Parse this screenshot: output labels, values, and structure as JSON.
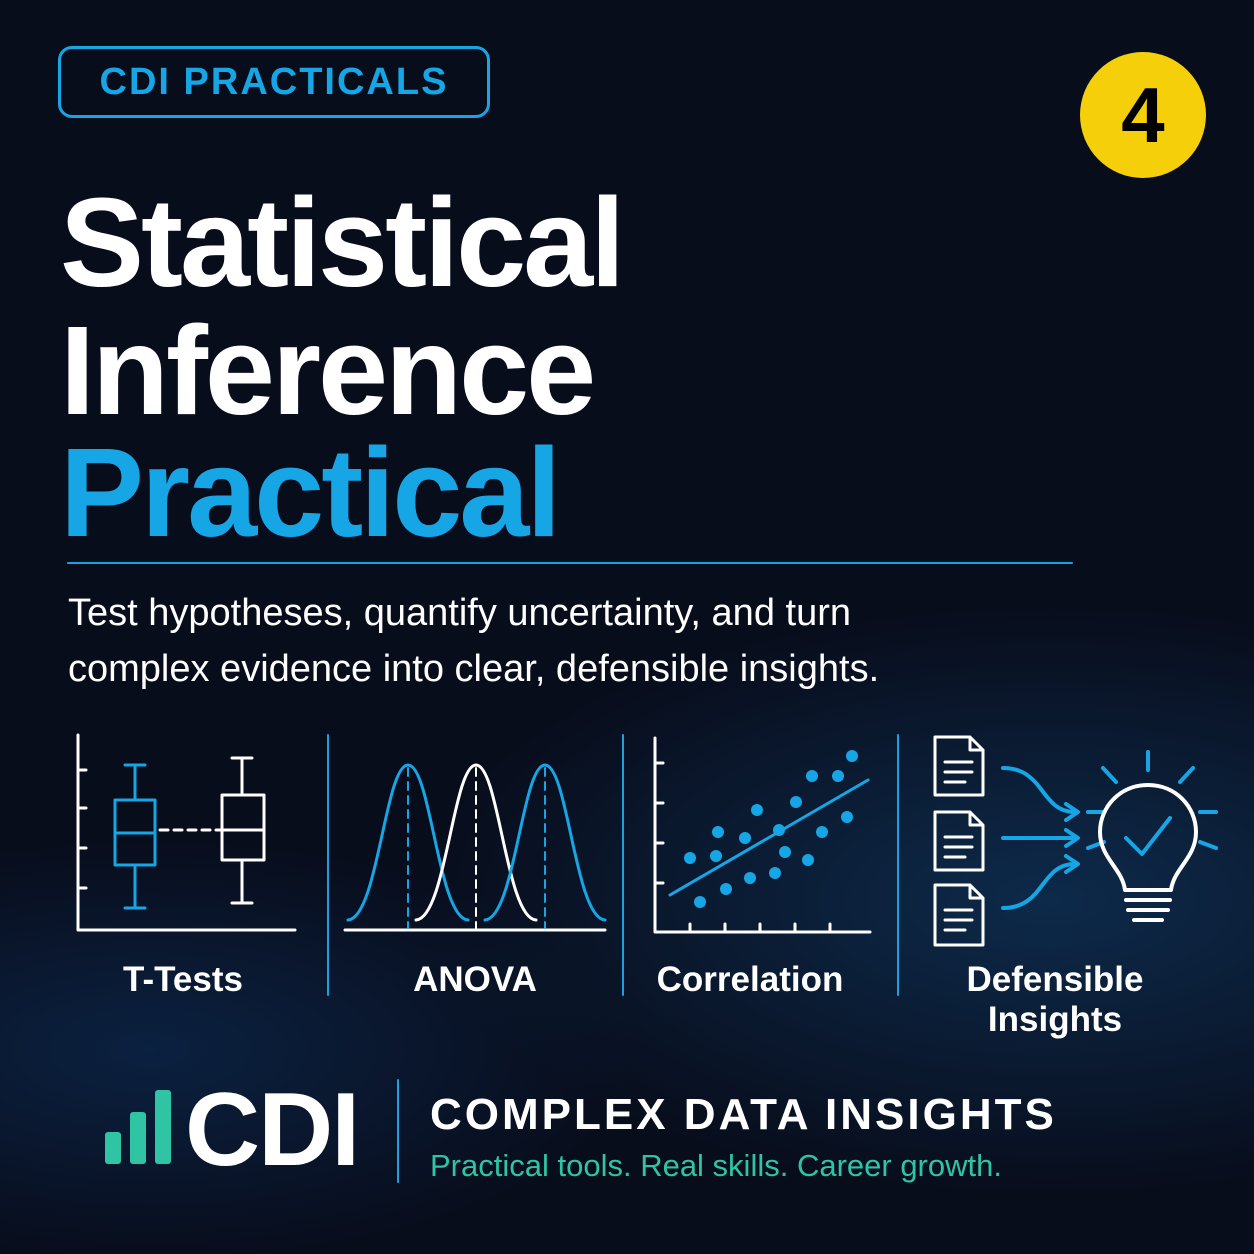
{
  "badge": "CDI PRACTICALS",
  "number": "4",
  "title": [
    "Statistical",
    "Inference",
    "Practical"
  ],
  "subtitle": [
    "Test hypotheses, quantify uncertainty, and turn",
    "complex evidence into clear, defensible insights."
  ],
  "panels": [
    {
      "label": "T-Tests"
    },
    {
      "label": "ANOVA"
    },
    {
      "label": "Correlation"
    },
    {
      "label": "Defensible Insights"
    }
  ],
  "footer": {
    "logo": "CDI",
    "brand": "COMPLEX DATA INSIGHTS",
    "tagline": "Practical tools. Real skills. Career growth."
  }
}
